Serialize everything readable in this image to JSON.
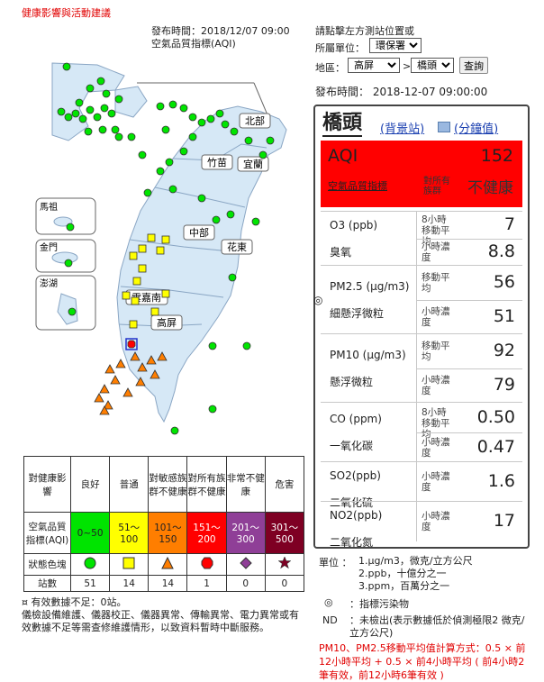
{
  "header": {
    "link": "健康影響與活動建議",
    "publish_time": "發布時間：2018/12/07 09:00",
    "index_name": "空氣品質指標(AQI)"
  },
  "controls": {
    "hint": "請點擊左方測站位置或",
    "unit_label": "所屬單位：",
    "unit_value": "環保署",
    "region_label": "地區：",
    "region_value": "高屏",
    "arrow": ">",
    "station_value": "橋頭",
    "search": "查詢",
    "publish_label": "發布時間：",
    "publish_value": "2018-12-07 09:00:00"
  },
  "map": {
    "regions": [
      "北部",
      "竹苗",
      "宜蘭",
      "中部",
      "花東",
      "雲嘉南",
      "高屏"
    ],
    "islands": [
      "馬祖",
      "金門",
      "澎湖"
    ]
  },
  "station": {
    "name": "橋頭",
    "type_link": "(背景站)",
    "minute_link": "(分鐘值)",
    "aqi_label": "AQI",
    "aqi_value": "152",
    "aqi_link": "空氣品質指標",
    "status_small": "對所有族群",
    "status_big": "不健康",
    "status_color": "#ff0000"
  },
  "pollutants": [
    {
      "name": "O3 (ppb)",
      "cn": "臭氧",
      "rows": [
        {
          "label": "8小時移動平均",
          "value": "7"
        },
        {
          "label": "小時濃度",
          "value": "8.8"
        }
      ]
    },
    {
      "name": "PM2.5 (μg/m3)",
      "cn": "細懸浮微粒",
      "mark": "◎",
      "rows": [
        {
          "label": "移動平均",
          "value": "56"
        },
        {
          "label": "小時濃度",
          "value": "51"
        }
      ]
    },
    {
      "name": "PM10 (μg/m3)",
      "cn": "懸浮微粒",
      "rows": [
        {
          "label": "移動平均",
          "value": "92"
        },
        {
          "label": "小時濃度",
          "value": "79"
        }
      ]
    },
    {
      "name": "CO (ppm)",
      "cn": "一氧化碳",
      "rows": [
        {
          "label": "8小時移動平均",
          "value": "0.50"
        },
        {
          "label": "小時濃度",
          "value": "0.47"
        }
      ]
    },
    {
      "name": "SO2(ppb)",
      "cn": "二氧化硫",
      "rows": [
        {
          "label": "小時濃度",
          "value": "1.6"
        }
      ]
    },
    {
      "name": "NO2(ppb)",
      "cn": "二氧化氮",
      "rows": [
        {
          "label": "小時濃度",
          "value": "17"
        }
      ]
    }
  ],
  "legend": {
    "header": "對健康影響",
    "levels": [
      {
        "name": "良好",
        "range": "0~50",
        "color": "#00e400",
        "count": "51"
      },
      {
        "name": "普通",
        "range": "51～100",
        "color": "#ffff00",
        "count": "14"
      },
      {
        "name": "對敏感族群不健康",
        "range": "101～150",
        "color": "#ff7e00",
        "count": "14"
      },
      {
        "name": "對所有族群不健康",
        "range": "151～200",
        "color": "#ff0000",
        "count": "1"
      },
      {
        "name": "非常不健康",
        "range": "201～300",
        "color": "#8f3f97",
        "count": "0"
      },
      {
        "name": "危害",
        "range": "301～500",
        "color": "#7e0023",
        "count": "0"
      }
    ],
    "row_aqi": "空氣品質指標(AQI)",
    "row_icon": "狀態色塊",
    "row_count": "站數"
  },
  "notes_left": {
    "line1": "¤ 有效數據不足：0站。",
    "line2": "儀檢設備維護、儀器校正、儀器異常、傳輸異常、電力異常或有效數據不足等需查修維護情形，以致資料暫時中斷服務。"
  },
  "notes_right": {
    "unit_label": "單位 ：",
    "unit1": "1.μg/m3，微克/立方公尺",
    "unit2": "2.ppb，十億分之一",
    "unit3": "3.ppm，百萬分之一",
    "mark_symbol": "◎",
    "mark_text": "：指標污染物",
    "nd_label": "ND",
    "nd_text": "：未檢出(表示數據低於偵測極限2 微克/立方公尺)",
    "formula": "PM10、PM2.5移動平均值計算方式：0.5 × 前12小時平均 + 0.5 × 前4小時平均 ( 前4小時2筆有效，前12小時6筆有效 )"
  }
}
